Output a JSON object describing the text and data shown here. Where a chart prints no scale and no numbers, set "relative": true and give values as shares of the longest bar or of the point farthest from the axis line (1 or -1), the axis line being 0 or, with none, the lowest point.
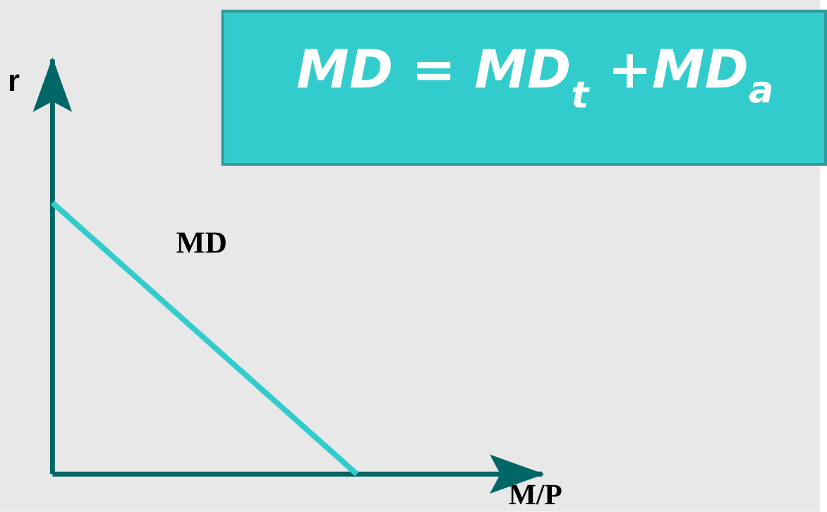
{
  "chart_data": {
    "type": "line",
    "relative": true,
    "title": "MD = MD$_{t}$ +MD$_{a}$",
    "xlabel": "M/P",
    "ylabel": "r",
    "categories": [
      null,
      null
    ],
    "series": [
      {
        "name": "MD",
        "color": "#33cccc",
        "values": [
          1,
          0
        ]
      }
    ]
  }
}
